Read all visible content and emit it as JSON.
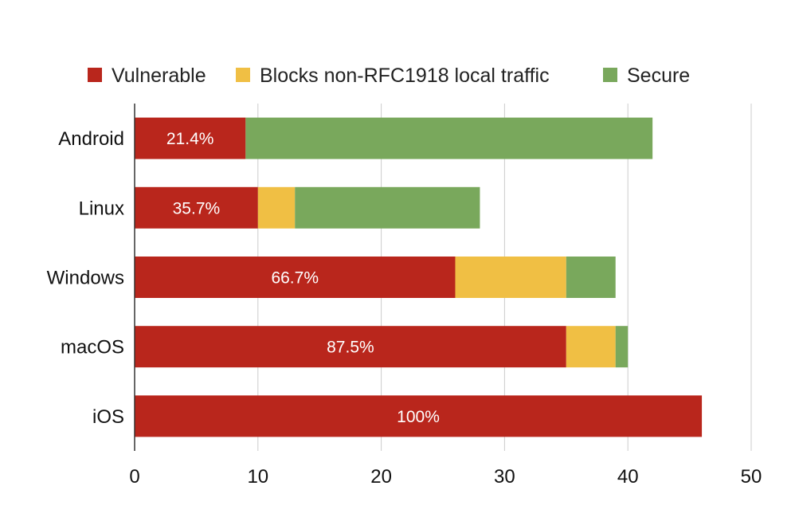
{
  "chart_data": {
    "type": "bar",
    "orientation": "horizontal",
    "stacked": true,
    "title": "",
    "xlabel": "",
    "ylabel": "",
    "xlim": [
      0,
      50
    ],
    "x_ticks": [
      "0",
      "10",
      "20",
      "30",
      "40",
      "50"
    ],
    "grid": true,
    "legend_position": "top",
    "categories": [
      "Android",
      "Linux",
      "Windows",
      "macOS",
      "iOS"
    ],
    "series": [
      {
        "name": "Vulnerable",
        "color": "#b9261c",
        "values": [
          9,
          10,
          26,
          35,
          46
        ]
      },
      {
        "name": "Blocks non-RFC1918 local traffic",
        "color": "#f0bf44",
        "values": [
          0,
          3,
          9,
          4,
          0
        ]
      },
      {
        "name": "Secure",
        "color": "#79a85c",
        "values": [
          33,
          15,
          4,
          1,
          0
        ]
      }
    ],
    "data_labels": [
      "21.4%",
      "35.7%",
      "66.7%",
      "87.5%",
      "100%"
    ]
  }
}
